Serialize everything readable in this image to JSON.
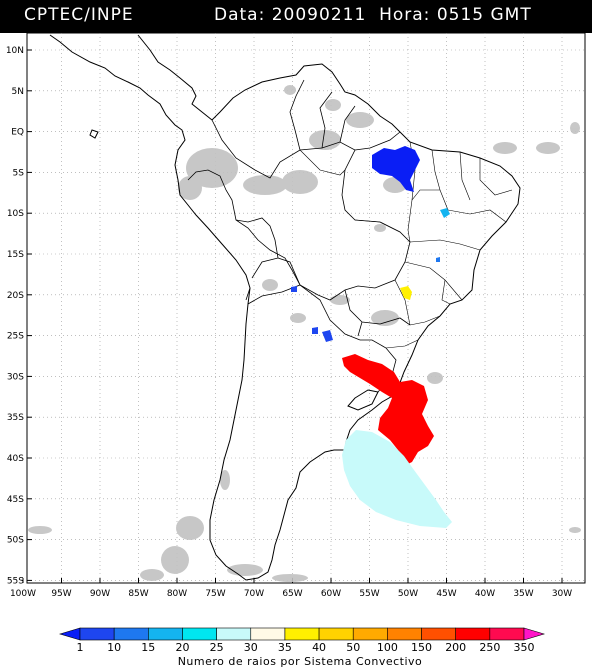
{
  "header": {
    "source": "CPTEC/INPE",
    "date_label": "Data:",
    "date_value": "20090211",
    "hour_label": "Hora:",
    "hour_value": "0515",
    "tz": "GMT"
  },
  "axes": {
    "lat_labels": [
      "10N",
      "5N",
      "EQ",
      "5S",
      "10S",
      "15S",
      "20S",
      "25S",
      "30S",
      "35S",
      "40S",
      "45S",
      "50S",
      "55S"
    ],
    "lon_labels": [
      "100W",
      "95W",
      "90W",
      "85W",
      "80W",
      "75W",
      "70W",
      "65W",
      "60W",
      "55W",
      "50W",
      "45W",
      "40W",
      "35W",
      "30W"
    ]
  },
  "legend": {
    "ticks": [
      "1",
      "10",
      "15",
      "20",
      "25",
      "30",
      "35",
      "40",
      "50",
      "100",
      "150",
      "200",
      "250",
      "350"
    ],
    "colors": [
      "#0a1ef5",
      "#1e46f0",
      "#1e78f0",
      "#14b4f0",
      "#00e6f0",
      "#c8fafa",
      "#fffae6",
      "#fff000",
      "#ffd200",
      "#ffaa00",
      "#ff8200",
      "#ff5000",
      "#ff0000",
      "#ff0a50",
      "#ff14c8"
    ],
    "caption": "Numero de raios por Sistema Convectivo"
  },
  "colors": {
    "land_outline": "#000000",
    "cloud": "#c0c0c0",
    "grid": "#999999"
  }
}
